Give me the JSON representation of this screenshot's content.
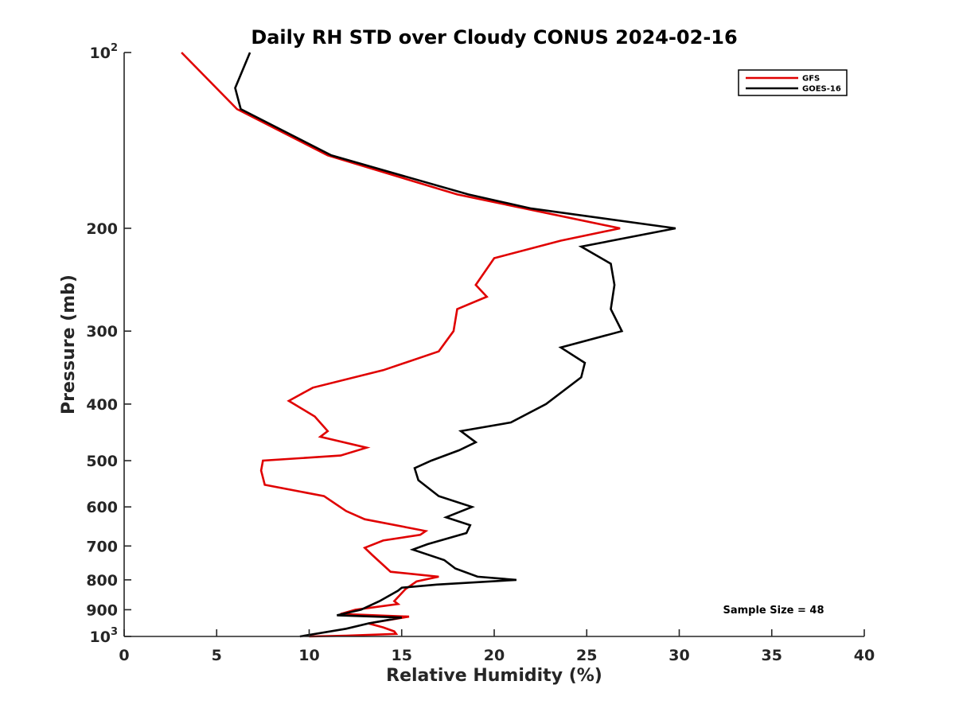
{
  "chart_data": {
    "type": "line",
    "title": "Daily RH STD over Cloudy CONUS 2024-02-16",
    "xlabel": "Relative Humidity (%)",
    "ylabel": "Pressure (mb)",
    "xlim": [
      0,
      40
    ],
    "ylim": [
      100,
      1000
    ],
    "y_scale": "log",
    "y_reversed": true,
    "x_ticks": [
      0,
      5,
      10,
      15,
      20,
      25,
      30,
      35,
      40
    ],
    "x_tick_labels": [
      "0",
      "5",
      "10",
      "15",
      "20",
      "25",
      "30",
      "35",
      "40"
    ],
    "y_ticks": [
      100,
      200,
      300,
      400,
      500,
      600,
      700,
      800,
      900,
      1000
    ],
    "y_tick_labels": [
      {
        "base": "10",
        "exp": "2"
      },
      {
        "base": "200",
        "exp": ""
      },
      {
        "base": "300",
        "exp": ""
      },
      {
        "base": "400",
        "exp": ""
      },
      {
        "base": "500",
        "exp": ""
      },
      {
        "base": "600",
        "exp": ""
      },
      {
        "base": "700",
        "exp": ""
      },
      {
        "base": "800",
        "exp": ""
      },
      {
        "base": "900",
        "exp": ""
      },
      {
        "base": "10",
        "exp": "3"
      }
    ],
    "grid": false,
    "legend_position": "top-right",
    "annotation": "Sample Size = 48",
    "series": [
      {
        "name": "GFS",
        "color": "#e00000",
        "points": [
          [
            3.1,
            100
          ],
          [
            6.1,
            125
          ],
          [
            11.0,
            150
          ],
          [
            18.0,
            175
          ],
          [
            26.8,
            200
          ],
          [
            23.6,
            210
          ],
          [
            20.0,
            225
          ],
          [
            19.0,
            250
          ],
          [
            19.6,
            262
          ],
          [
            18.0,
            275
          ],
          [
            17.8,
            300
          ],
          [
            17.0,
            325
          ],
          [
            14.0,
            350
          ],
          [
            10.2,
            375
          ],
          [
            8.9,
            395
          ],
          [
            10.3,
            420
          ],
          [
            11.0,
            445
          ],
          [
            10.6,
            455
          ],
          [
            13.1,
            475
          ],
          [
            11.7,
            490
          ],
          [
            7.5,
            500
          ],
          [
            7.4,
            520
          ],
          [
            7.6,
            550
          ],
          [
            10.8,
            575
          ],
          [
            12.0,
            610
          ],
          [
            13.0,
            630
          ],
          [
            16.3,
            660
          ],
          [
            16.0,
            670
          ],
          [
            14.0,
            685
          ],
          [
            13.0,
            705
          ],
          [
            13.4,
            725
          ],
          [
            14.4,
            775
          ],
          [
            17.0,
            790
          ],
          [
            15.8,
            805
          ],
          [
            15.2,
            830
          ],
          [
            14.6,
            870
          ],
          [
            14.8,
            880
          ],
          [
            12.5,
            900
          ],
          [
            11.7,
            915
          ],
          [
            15.4,
            925
          ],
          [
            13.2,
            950
          ],
          [
            14.0,
            965
          ],
          [
            14.6,
            980
          ],
          [
            14.7,
            990
          ],
          [
            12.0,
            997
          ],
          [
            10.0,
            1000
          ]
        ]
      },
      {
        "name": "GOES-16",
        "color": "#000000",
        "points": [
          [
            6.8,
            100
          ],
          [
            6.0,
            115
          ],
          [
            6.3,
            125
          ],
          [
            11.2,
            150
          ],
          [
            18.6,
            175
          ],
          [
            22.0,
            185
          ],
          [
            29.8,
            200
          ],
          [
            24.7,
            215
          ],
          [
            26.3,
            230
          ],
          [
            26.5,
            250
          ],
          [
            26.3,
            275
          ],
          [
            26.9,
            300
          ],
          [
            23.6,
            320
          ],
          [
            24.9,
            340
          ],
          [
            24.7,
            360
          ],
          [
            22.8,
            400
          ],
          [
            20.9,
            430
          ],
          [
            18.2,
            445
          ],
          [
            19.0,
            465
          ],
          [
            18.1,
            480
          ],
          [
            16.6,
            500
          ],
          [
            15.7,
            515
          ],
          [
            15.9,
            540
          ],
          [
            17.0,
            575
          ],
          [
            18.8,
            600
          ],
          [
            17.4,
            625
          ],
          [
            18.7,
            645
          ],
          [
            18.5,
            665
          ],
          [
            16.4,
            695
          ],
          [
            15.6,
            710
          ],
          [
            17.3,
            740
          ],
          [
            17.9,
            765
          ],
          [
            19.1,
            790
          ],
          [
            21.2,
            800
          ],
          [
            16.9,
            815
          ],
          [
            15.0,
            825
          ],
          [
            14.8,
            835
          ],
          [
            13.8,
            870
          ],
          [
            12.8,
            900
          ],
          [
            11.5,
            920
          ],
          [
            15.0,
            928
          ],
          [
            13.2,
            950
          ],
          [
            12.0,
            970
          ],
          [
            9.5,
            1000
          ]
        ]
      }
    ]
  }
}
